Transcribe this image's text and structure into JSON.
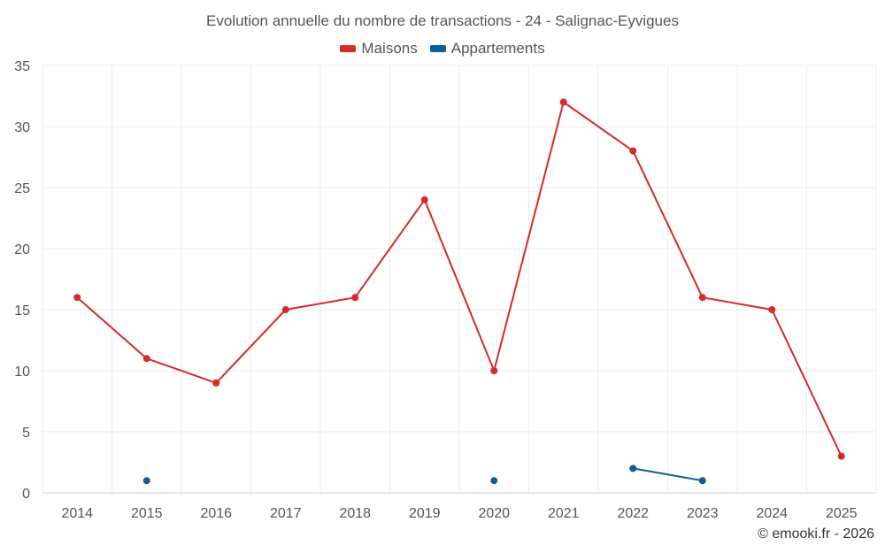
{
  "chart_data": {
    "type": "line",
    "title": "Evolution annuelle du nombre de transactions - 24 - Salignac-Eyvigues",
    "categories": [
      "2014",
      "2015",
      "2016",
      "2017",
      "2018",
      "2019",
      "2020",
      "2021",
      "2022",
      "2023",
      "2024",
      "2025"
    ],
    "yticks": [
      0,
      5,
      10,
      15,
      20,
      25,
      30,
      35
    ],
    "ylim": [
      0,
      35
    ],
    "xlabel": "",
    "ylabel": "",
    "grid": true,
    "legend_position": "top-center",
    "series": [
      {
        "name": "Maisons",
        "color": "#d42a2a",
        "values": [
          16,
          11,
          9,
          15,
          16,
          24,
          10,
          32,
          28,
          16,
          15,
          3
        ]
      },
      {
        "name": "Appartements",
        "color": "#0a5e9c",
        "values": [
          null,
          1,
          null,
          null,
          null,
          null,
          1,
          null,
          2,
          1,
          null,
          null
        ]
      }
    ]
  },
  "credits": "© emooki.fr - 2026"
}
